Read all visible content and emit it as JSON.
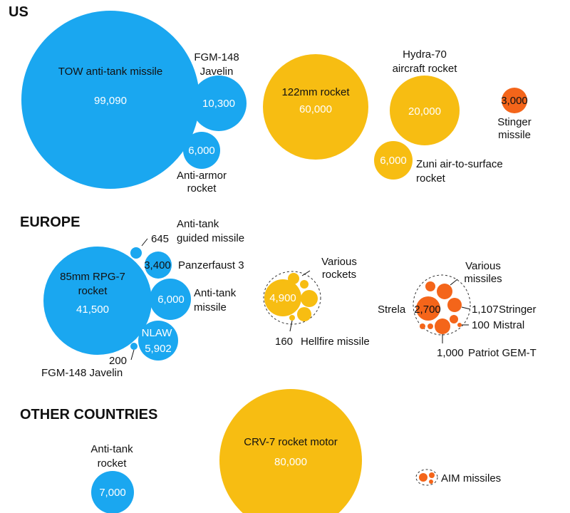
{
  "colors": {
    "anti_tank": "#1aa7f0",
    "rocket": "#f7bd12",
    "missile": "#f4651a"
  },
  "chart_data": {
    "type": "bubble",
    "regions": [
      {
        "name": "US",
        "items": [
          {
            "label": "TOW anti-tank missile",
            "value": 99090,
            "value_text": "99,090",
            "category": "anti_tank"
          },
          {
            "label": "FGM-148 Javelin",
            "value": 10300,
            "value_text": "10,300",
            "category": "anti_tank"
          },
          {
            "label": "Anti-armor rocket",
            "value": 6000,
            "value_text": "6,000",
            "category": "anti_tank"
          },
          {
            "label": "122mm rocket",
            "value": 60000,
            "value_text": "60,000",
            "category": "rocket"
          },
          {
            "label": "Hydra-70 aircraft rocket",
            "value": 20000,
            "value_text": "20,000",
            "category": "rocket"
          },
          {
            "label": "Zuni air-to-surface rocket",
            "value": 6000,
            "value_text": "6,000",
            "category": "rocket"
          },
          {
            "label": "Stinger missile",
            "value": 3000,
            "value_text": "3,000",
            "category": "missile"
          }
        ]
      },
      {
        "name": "EUROPE",
        "items": [
          {
            "label": "85mm RPG-7 rocket",
            "value": 41500,
            "value_text": "41,500",
            "category": "anti_tank"
          },
          {
            "label": "Anti-tank guided missile",
            "value": 645,
            "value_text": "645",
            "category": "anti_tank"
          },
          {
            "label": "Panzerfaust 3",
            "value": 3400,
            "value_text": "3,400",
            "category": "anti_tank"
          },
          {
            "label": "Anti-tank missile",
            "value": 6000,
            "value_text": "6,000",
            "category": "anti_tank"
          },
          {
            "label": "NLAW",
            "value": 5902,
            "value_text": "5,902",
            "category": "anti_tank"
          },
          {
            "label": "FGM-148 Javelin",
            "value": 200,
            "value_text": "200",
            "category": "anti_tank"
          },
          {
            "label": "Various rockets",
            "value": 4900,
            "value_text": "4,900",
            "category": "rocket"
          },
          {
            "label": "Hellfire missile",
            "value": 160,
            "value_text": "160",
            "category": "rocket"
          },
          {
            "label": "Various missiles",
            "value": null,
            "value_text": "",
            "category": "missile"
          },
          {
            "label": "Strela",
            "value": 2700,
            "value_text": "2,700",
            "category": "missile"
          },
          {
            "label": "Stringer",
            "value": 1107,
            "value_text": "1,107",
            "category": "missile"
          },
          {
            "label": "Mistral",
            "value": 100,
            "value_text": "100",
            "category": "missile"
          },
          {
            "label": "Patriot GEM-T",
            "value": 1000,
            "value_text": "1,000",
            "category": "missile"
          }
        ]
      },
      {
        "name": "OTHER COUNTRIES",
        "items": [
          {
            "label": "Anti-tank rocket",
            "value": 7000,
            "value_text": "7,000",
            "category": "anti_tank"
          },
          {
            "label": "CRV-7 rocket motor",
            "value": 80000,
            "value_text": "80,000",
            "category": "rocket"
          },
          {
            "label": "AIM missiles",
            "value": null,
            "value_text": "",
            "category": "missile"
          }
        ]
      }
    ]
  },
  "text": {
    "us_heading": "US",
    "europe_heading": "EUROPE",
    "other_heading": "OTHER COUNTRIES",
    "tow_label": "TOW anti-tank missile",
    "tow_value": "99,090",
    "javelin_l1": "FGM-148",
    "javelin_l2": "Javelin",
    "javelin_value": "10,300",
    "antiarmor_l1": "Anti-armor",
    "antiarmor_l2": "rocket",
    "antiarmor_value": "6,000",
    "r122_label": "122mm rocket",
    "r122_value": "60,000",
    "hydra_l1": "Hydra-70",
    "hydra_l2": "aircraft rocket",
    "hydra_value": "20,000",
    "zuni_l1": "Zuni air-to-surface",
    "zuni_l2": "rocket",
    "zuni_value": "6,000",
    "stinger_value": "3,000",
    "stinger_l1": "Stinger",
    "stinger_l2": "missile",
    "atgm_l1": "Anti-tank",
    "atgm_l2": "guided missile",
    "atgm_value": "645",
    "pzf_value": "3,400",
    "pzf_label": "Panzerfaust 3",
    "rpg_l1": "85mm RPG-7",
    "rpg_l2": "rocket",
    "rpg_value": "41,500",
    "atm_value": "6,000",
    "atm_l1": "Anti-tank",
    "atm_l2": "missile",
    "nlaw_label": "NLAW",
    "nlaw_value": "5,902",
    "ejav_value": "200",
    "ejav_label": "FGM-148 Javelin",
    "vrockets_l1": "Various",
    "vrockets_l2": "rockets",
    "vrockets_value": "4,900",
    "hellfire_value": "160",
    "hellfire_label": "Hellfire missile",
    "vmissiles_l1": "Various",
    "vmissiles_l2": "missiles",
    "strela_label": "Strela",
    "strela_value": "2,700",
    "stringer_value": "1,107",
    "stringer_label": "Stringer",
    "mistral_value": "100",
    "mistral_label": "Mistral",
    "patriot_value": "1,000",
    "patriot_label": "Patriot GEM-T",
    "otr_l1": "Anti-tank",
    "otr_l2": "rocket",
    "otr_value": "7,000",
    "crv_label": "CRV-7 rocket motor",
    "crv_value": "80,000",
    "aim_label": "AIM missiles"
  }
}
